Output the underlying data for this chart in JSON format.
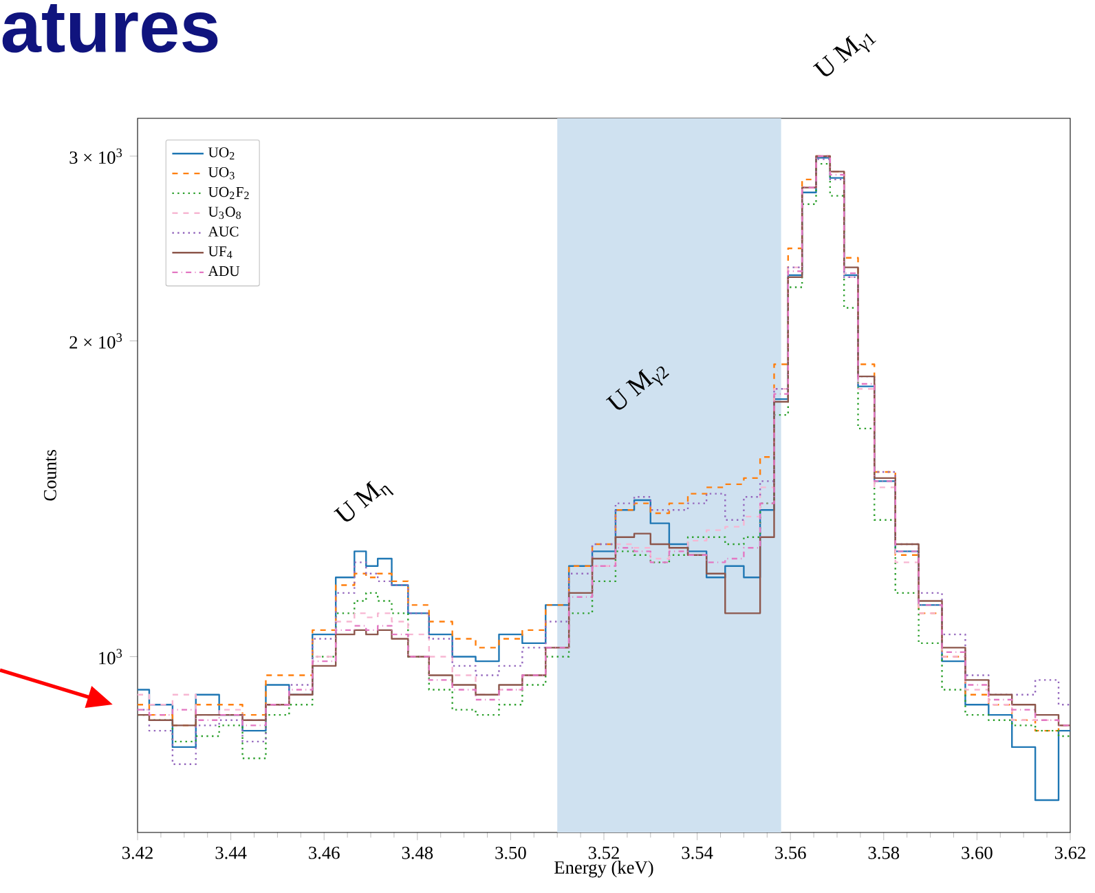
{
  "chart_data": {
    "type": "step",
    "title": "atures",
    "xlabel": "Energy (keV)",
    "ylabel": "Counts",
    "annotations": [
      "U M$_{η}$",
      "U M$_{γ2}$",
      "U M$_{γ1}$"
    ],
    "x": [
      3.42,
      3.425,
      3.43,
      3.435,
      3.44,
      3.445,
      3.45,
      3.455,
      3.46,
      3.465,
      3.468,
      3.47,
      3.473,
      3.476,
      3.48,
      3.485,
      3.49,
      3.495,
      3.5,
      3.505,
      3.51,
      3.515,
      3.52,
      3.525,
      3.528,
      3.532,
      3.536,
      3.54,
      3.544,
      3.548,
      3.552,
      3.555,
      3.558,
      3.561,
      3.564,
      3.567,
      3.57,
      3.573,
      3.576,
      3.58,
      3.585,
      3.59,
      3.595,
      3.6,
      3.605,
      3.61,
      3.615,
      3.62
    ],
    "series": [
      {
        "name": "UO$_{2}$",
        "color": "#1f77b4",
        "line_style": "solid",
        "values": [
          930,
          900,
          820,
          920,
          880,
          850,
          940,
          920,
          1050,
          1190,
          1260,
          1220,
          1240,
          1170,
          1100,
          1050,
          1000,
          990,
          1050,
          1030,
          1120,
          1220,
          1260,
          1380,
          1410,
          1340,
          1280,
          1260,
          1190,
          1220,
          1190,
          1380,
          1760,
          2310,
          2770,
          2990,
          2860,
          2310,
          1810,
          1470,
          1260,
          1120,
          990,
          900,
          880,
          820,
          730,
          850
        ]
      },
      {
        "name": "UO$_{3}$",
        "color": "#ff7f0e",
        "line_style": "dashed",
        "values": [
          900,
          880,
          860,
          900,
          900,
          880,
          960,
          960,
          1060,
          1170,
          1200,
          1190,
          1200,
          1180,
          1120,
          1080,
          1040,
          1020,
          1040,
          1060,
          1120,
          1220,
          1280,
          1380,
          1400,
          1370,
          1400,
          1430,
          1450,
          1460,
          1480,
          1550,
          1900,
          2450,
          2850,
          3000,
          2900,
          2400,
          1900,
          1500,
          1250,
          1100,
          1000,
          920,
          900,
          870,
          850,
          860
        ]
      },
      {
        "name": "UO$_{2}$F$_{2}$",
        "color": "#2ca02c",
        "line_style": "dotted",
        "values": [
          880,
          870,
          830,
          840,
          860,
          800,
          880,
          900,
          1000,
          1100,
          1130,
          1150,
          1130,
          1100,
          1000,
          930,
          890,
          880,
          900,
          940,
          1000,
          1100,
          1180,
          1260,
          1250,
          1230,
          1250,
          1300,
          1300,
          1280,
          1300,
          1400,
          1700,
          2250,
          2700,
          2950,
          2750,
          2150,
          1650,
          1350,
          1150,
          1030,
          930,
          880,
          870,
          860,
          850,
          840
        ]
      },
      {
        "name": "U$_{3}$O$_{8}$",
        "color": "#f7b6d2",
        "line_style": "dashed",
        "values": [
          920,
          900,
          920,
          880,
          890,
          870,
          900,
          920,
          1000,
          1080,
          1100,
          1090,
          1100,
          1080,
          1050,
          1000,
          960,
          920,
          930,
          960,
          1020,
          1150,
          1220,
          1280,
          1270,
          1240,
          1270,
          1290,
          1320,
          1330,
          1360,
          1450,
          1800,
          2350,
          2800,
          3000,
          2900,
          2300,
          1800,
          1450,
          1230,
          1100,
          1000,
          930,
          900,
          870,
          870,
          860
        ]
      },
      {
        "name": "AUC",
        "color": "#9467bd",
        "line_style": "dotted",
        "values": [
          890,
          850,
          790,
          860,
          870,
          830,
          900,
          940,
          1040,
          1150,
          1230,
          1200,
          1180,
          1170,
          1100,
          1040,
          980,
          960,
          980,
          1020,
          1080,
          1200,
          1280,
          1400,
          1420,
          1380,
          1380,
          1400,
          1430,
          1350,
          1420,
          1470,
          1800,
          2350,
          2800,
          2980,
          2850,
          2300,
          1850,
          1500,
          1280,
          1150,
          1050,
          960,
          920,
          920,
          950,
          900
        ]
      },
      {
        "name": "UF$_{4}$",
        "color": "#8c564b",
        "line_style": "solid",
        "values": [
          880,
          870,
          860,
          880,
          880,
          870,
          900,
          920,
          980,
          1050,
          1060,
          1050,
          1060,
          1040,
          1000,
          960,
          940,
          920,
          940,
          960,
          1020,
          1150,
          1240,
          1300,
          1310,
          1280,
          1270,
          1250,
          1200,
          1100,
          1100,
          1300,
          1750,
          2300,
          2800,
          3000,
          2900,
          2350,
          1850,
          1480,
          1280,
          1130,
          1020,
          950,
          920,
          900,
          880,
          860
        ]
      },
      {
        "name": "ADU",
        "color": "#e377c2",
        "line_style": "dashdot",
        "values": [
          890,
          880,
          890,
          870,
          880,
          860,
          900,
          930,
          990,
          1060,
          1070,
          1060,
          1070,
          1050,
          1000,
          950,
          930,
          910,
          930,
          960,
          1020,
          1140,
          1220,
          1270,
          1260,
          1230,
          1260,
          1250,
          1230,
          1240,
          1270,
          1400,
          1780,
          2330,
          2800,
          3000,
          2880,
          2320,
          1820,
          1470,
          1260,
          1120,
          1010,
          940,
          910,
          890,
          870,
          860
        ]
      }
    ],
    "log": "y",
    "legend": "top left",
    "xlim": [
      3.42,
      3.62
    ],
    "ylim": [
      680,
      3260
    ],
    "xticks": [
      3.42,
      3.44,
      3.46,
      3.48,
      {
        "value": 3.5,
        "label": "3.50"
      },
      3.52,
      3.54,
      3.56,
      3.58,
      {
        "value": 3.6,
        "label": "3.60"
      },
      3.62
    ],
    "yticks": [
      {
        "value": 1000,
        "label": "10$^{3}$"
      },
      {
        "value": 2000,
        "label": "2 × 10$^{3}$"
      },
      {
        "value": 3000,
        "label": "3 × 10$^{3}$"
      }
    ],
    "bands": [
      {
        "axis": "x",
        "from": 3.51,
        "to": 3.558,
        "color": "#cfe1f0"
      }
    ]
  }
}
